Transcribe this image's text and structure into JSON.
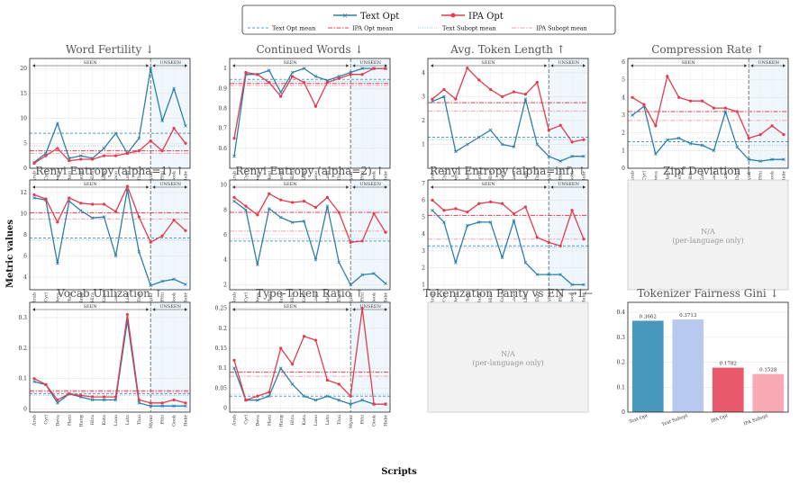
{
  "colors": {
    "text": "#2b7fa6",
    "ipa": "#e03c4f",
    "text_mean": "#5a9bc9",
    "ipa_mean": "#e03c4f",
    "text_subopt": "#9fc3e0",
    "ipa_subopt": "#f3a2ad",
    "bar_colors": [
      "#4a97bc",
      "#b8c9ef",
      "#e85a6b",
      "#f7aab4"
    ]
  },
  "legend": {
    "text_opt": "Text Opt",
    "ipa_opt": "IPA Opt",
    "text_opt_mean": "Text Opt mean",
    "ipa_opt_mean": "IPA Opt mean",
    "text_subopt_mean": "Text Subopt mean",
    "ipa_subopt_mean": "IPA Subopt mean"
  },
  "labels": {
    "ylabel": "Metric values",
    "xlabel": "Scripts",
    "seen": "SEEN",
    "unseen": "UNSEEN"
  },
  "chart_data": [
    {
      "type": "line",
      "title": "Word Fertility ↓",
      "categories": [
        "Arab",
        "Cyrl",
        "Deva",
        "Hani",
        "Hang",
        "Hira",
        "Kata",
        "Laoo",
        "Latn",
        "Thai",
        "Mymr",
        "Ethi",
        "Geok",
        "Hebr"
      ],
      "seen_count": 10,
      "ylim": [
        0,
        22
      ],
      "yticks": [
        0,
        5,
        10,
        15,
        20
      ],
      "series": [
        {
          "name": "Text Opt",
          "values": [
            1.2,
            3.0,
            9.0,
            2.0,
            2.5,
            2.0,
            4.0,
            7.0,
            3.0,
            6.0,
            20.0,
            9.5,
            16.0,
            8.5
          ]
        },
        {
          "name": "IPA Opt",
          "values": [
            1.0,
            2.5,
            4.0,
            1.5,
            1.8,
            1.8,
            2.5,
            2.5,
            3.0,
            3.5,
            5.5,
            3.5,
            8.0,
            5.0
          ]
        }
      ],
      "means": {
        "text_opt": 7.0,
        "ipa_opt": 3.5,
        "text_subopt": 4.5,
        "ipa_subopt": 3.0
      }
    },
    {
      "type": "line",
      "title": "Continued Words ↓",
      "categories": [
        "Arab",
        "Cyrl",
        "Deva",
        "Hani",
        "Hang",
        "Hira",
        "Kata",
        "Laoo",
        "Latn",
        "Thai",
        "Mymr",
        "Ethi",
        "Geok",
        "Hebr"
      ],
      "seen_count": 10,
      "ylim": [
        0.5,
        1.05
      ],
      "yticks": [
        0.6,
        0.7,
        0.8,
        0.9,
        1.0
      ],
      "series": [
        {
          "name": "Text Opt",
          "values": [
            0.56,
            0.97,
            0.97,
            0.99,
            0.88,
            0.98,
            1.0,
            0.96,
            0.94,
            0.96,
            0.98,
            1.0,
            1.0,
            1.0
          ]
        },
        {
          "name": "IPA Opt",
          "values": [
            0.65,
            0.98,
            0.97,
            0.93,
            0.86,
            0.96,
            0.93,
            0.81,
            0.93,
            0.95,
            0.97,
            0.97,
            1.0,
            1.0
          ]
        }
      ],
      "means": {
        "text_opt": 0.945,
        "ipa_opt": 0.925,
        "text_subopt": 0.935,
        "ipa_subopt": 0.915
      }
    },
    {
      "type": "line",
      "title": "Avg. Token Length ↑",
      "categories": [
        "Arab",
        "Cyrl",
        "Deva",
        "Hani",
        "Hang",
        "Hira",
        "Kata",
        "Laoo",
        "Latn",
        "Thai",
        "Mymr",
        "Ethi",
        "Geok",
        "Hebr"
      ],
      "seen_count": 10,
      "ylim": [
        0,
        4.6
      ],
      "yticks": [
        1,
        2,
        3,
        4
      ],
      "series": [
        {
          "name": "Text Opt",
          "values": [
            2.8,
            3.0,
            0.7,
            1.0,
            1.3,
            1.6,
            1.0,
            0.9,
            2.9,
            1.0,
            0.5,
            0.3,
            0.5,
            0.5
          ]
        },
        {
          "name": "IPA Opt",
          "values": [
            2.9,
            3.3,
            2.9,
            4.2,
            3.7,
            3.3,
            3.0,
            3.2,
            3.1,
            3.6,
            1.6,
            1.8,
            1.1,
            1.2
          ]
        }
      ],
      "means": {
        "text_opt": 1.3,
        "ipa_opt": 2.75,
        "text_subopt": 1.2,
        "ipa_subopt": 2.4
      }
    },
    {
      "type": "line",
      "title": "Compression Rate ↑",
      "categories": [
        "Arab",
        "Cyrl",
        "Deva",
        "Hani",
        "Hang",
        "Hira",
        "Kata",
        "Laoo",
        "Latn",
        "Thai",
        "Mymr",
        "Ethi",
        "Geok",
        "Hebr"
      ],
      "seen_count": 10,
      "ylim": [
        0,
        6.2
      ],
      "yticks": [
        0,
        1,
        2,
        3,
        4,
        5,
        6
      ],
      "series": [
        {
          "name": "Text Opt",
          "values": [
            3.0,
            3.5,
            0.8,
            1.6,
            1.7,
            1.4,
            1.3,
            1.0,
            3.2,
            1.2,
            0.5,
            0.4,
            0.5,
            0.5
          ]
        },
        {
          "name": "IPA Opt",
          "values": [
            4.0,
            3.6,
            2.4,
            5.2,
            4.0,
            3.8,
            3.8,
            3.4,
            3.4,
            3.2,
            1.7,
            1.9,
            2.4,
            1.9
          ]
        }
      ],
      "means": {
        "text_opt": 1.5,
        "ipa_opt": 3.2,
        "text_subopt": 1.3,
        "ipa_subopt": 2.7
      }
    },
    {
      "type": "line",
      "title": "Renyi Entropy (alpha=1) ↑",
      "categories": [
        "Arab",
        "Cyrl",
        "Deva",
        "Hani",
        "Hang",
        "Hira",
        "Kata",
        "Laoo",
        "Latn",
        "Thai",
        "Mymr",
        "Ethi",
        "Geok",
        "Hebr"
      ],
      "seen_count": 10,
      "ylim": [
        2.8,
        13.2
      ],
      "yticks": [
        4,
        6,
        8,
        10,
        12
      ],
      "series": [
        {
          "name": "Text Opt",
          "values": [
            11.5,
            11.3,
            5.3,
            11.2,
            10.3,
            9.6,
            9.7,
            6.0,
            12.3,
            6.4,
            3.2,
            3.6,
            3.8,
            3.3
          ]
        },
        {
          "name": "IPA Opt",
          "values": [
            11.8,
            11.4,
            9.2,
            11.5,
            11.0,
            10.9,
            10.9,
            10.2,
            12.6,
            9.7,
            7.3,
            7.9,
            9.4,
            8.4
          ]
        }
      ],
      "means": {
        "text_opt": 7.7,
        "ipa_opt": 10.1,
        "text_subopt": 7.5,
        "ipa_subopt": 9.5
      }
    },
    {
      "type": "line",
      "title": "Renyi Entropy (alpha=2) ↑",
      "categories": [
        "Arab",
        "Cyrl",
        "Deva",
        "Hani",
        "Hang",
        "Hira",
        "Kata",
        "Laoo",
        "Latn",
        "Thai",
        "Mymr",
        "Ethi",
        "Geok",
        "Hebr"
      ],
      "seen_count": 10,
      "ylim": [
        1.6,
        10.4
      ],
      "yticks": [
        2,
        4,
        6,
        8,
        10
      ],
      "series": [
        {
          "name": "Text Opt",
          "values": [
            8.7,
            8.0,
            3.6,
            8.1,
            7.4,
            7.0,
            7.1,
            4.0,
            8.3,
            3.8,
            2.0,
            2.8,
            2.9,
            2.1
          ]
        },
        {
          "name": "IPA Opt",
          "values": [
            9.0,
            8.3,
            7.6,
            9.3,
            8.8,
            8.6,
            8.7,
            8.2,
            9.0,
            7.8,
            5.4,
            5.5,
            7.7,
            6.2
          ]
        }
      ],
      "means": {
        "text_opt": 5.5,
        "ipa_opt": 7.8,
        "text_subopt": 5.7,
        "ipa_subopt": 6.3
      }
    },
    {
      "type": "line",
      "title": "Renyi Entropy (alpha=inf) ↑",
      "categories": [
        "Arab",
        "Cyrl",
        "Deva",
        "Hani",
        "Hang",
        "Hira",
        "Kata",
        "Laoo",
        "Latn",
        "Thai",
        "Mymr",
        "Ethi",
        "Geok",
        "Hebr"
      ],
      "seen_count": 10,
      "ylim": [
        0.7,
        7.2
      ],
      "yticks": [
        1,
        2,
        3,
        4,
        5,
        6,
        7
      ],
      "series": [
        {
          "name": "Text Opt",
          "values": [
            5.4,
            4.7,
            2.3,
            4.5,
            4.7,
            4.7,
            2.6,
            4.8,
            2.3,
            1.6,
            1.6,
            1.6,
            1.0,
            1.0
          ]
        },
        {
          "name": "IPA Opt",
          "values": [
            6.0,
            5.4,
            5.5,
            5.3,
            5.8,
            5.9,
            5.8,
            5.2,
            5.6,
            3.8,
            3.5,
            3.3,
            5.4,
            3.7
          ]
        }
      ],
      "means": {
        "text_opt": 3.3,
        "ipa_opt": 5.1,
        "text_subopt": 3.2,
        "ipa_subopt": 3.7
      }
    },
    {
      "type": "placeholder",
      "title": "Zipf Deviation ↓",
      "text": "N/A",
      "subtext": "(per-language only)"
    },
    {
      "type": "line",
      "title": "Vocab Utilization ↑",
      "categories": [
        "Arab",
        "Cyrl",
        "Deva",
        "Hani",
        "Hang",
        "Hira",
        "Kata",
        "Laoo",
        "Latn",
        "Thai",
        "Mymr",
        "Ethi",
        "Geok",
        "Hebr"
      ],
      "seen_count": 10,
      "ylim": [
        -0.01,
        0.35
      ],
      "yticks": [
        0.0,
        0.1,
        0.2,
        0.3
      ],
      "series": [
        {
          "name": "Text Opt",
          "values": [
            0.09,
            0.08,
            0.02,
            0.05,
            0.04,
            0.03,
            0.03,
            0.03,
            0.29,
            0.02,
            0.01,
            0.01,
            0.01,
            0.01
          ]
        },
        {
          "name": "IPA Opt",
          "values": [
            0.1,
            0.08,
            0.03,
            0.05,
            0.045,
            0.04,
            0.04,
            0.04,
            0.31,
            0.03,
            0.02,
            0.02,
            0.03,
            0.02
          ]
        }
      ],
      "means": {
        "text_opt": 0.05,
        "ipa_opt": 0.06,
        "text_subopt": 0.045,
        "ipa_subopt": 0.055
      }
    },
    {
      "type": "line",
      "title": "Type-Token Ratio ↑",
      "categories": [
        "Arab",
        "Cyrl",
        "Deva",
        "Hani",
        "Hang",
        "Hira",
        "Kata",
        "Laoo",
        "Latn",
        "Thai",
        "Mymr",
        "Ethi",
        "Geok",
        "Hebr"
      ],
      "seen_count": 10,
      "ylim": [
        -0.01,
        0.265
      ],
      "yticks": [
        0.0,
        0.05,
        0.1,
        0.15,
        0.2,
        0.25
      ],
      "series": [
        {
          "name": "Text Opt",
          "values": [
            0.1,
            0.02,
            0.02,
            0.03,
            0.1,
            0.06,
            0.03,
            0.02,
            0.03,
            0.02,
            0.01,
            0.02,
            0.01,
            0.01
          ]
        },
        {
          "name": "IPA Opt",
          "values": [
            0.12,
            0.02,
            0.03,
            0.04,
            0.15,
            0.11,
            0.18,
            0.17,
            0.07,
            0.06,
            0.03,
            0.25,
            0.01,
            0.01
          ]
        }
      ],
      "means": {
        "text_opt": 0.03,
        "ipa_opt": 0.09,
        "text_subopt": 0.035,
        "ipa_subopt": 0.08
      }
    },
    {
      "type": "placeholder",
      "title": "Tokenization Parity vs EN →1←",
      "text": "N/A",
      "subtext": "(per-language only)"
    },
    {
      "type": "bar",
      "title": "Tokenizer Fairness Gini ↓",
      "categories": [
        "Text Opt",
        "Text Subopt",
        "IPA Opt",
        "IPA Subopt"
      ],
      "values": [
        0.3662,
        0.3713,
        0.1782,
        0.1528
      ],
      "value_labels": [
        "0.3662",
        "0.3713",
        "0.1782",
        "0.1528"
      ],
      "ylim": [
        0,
        0.44
      ],
      "yticks": [
        0.0,
        0.1,
        0.2,
        0.3,
        0.4
      ]
    }
  ]
}
